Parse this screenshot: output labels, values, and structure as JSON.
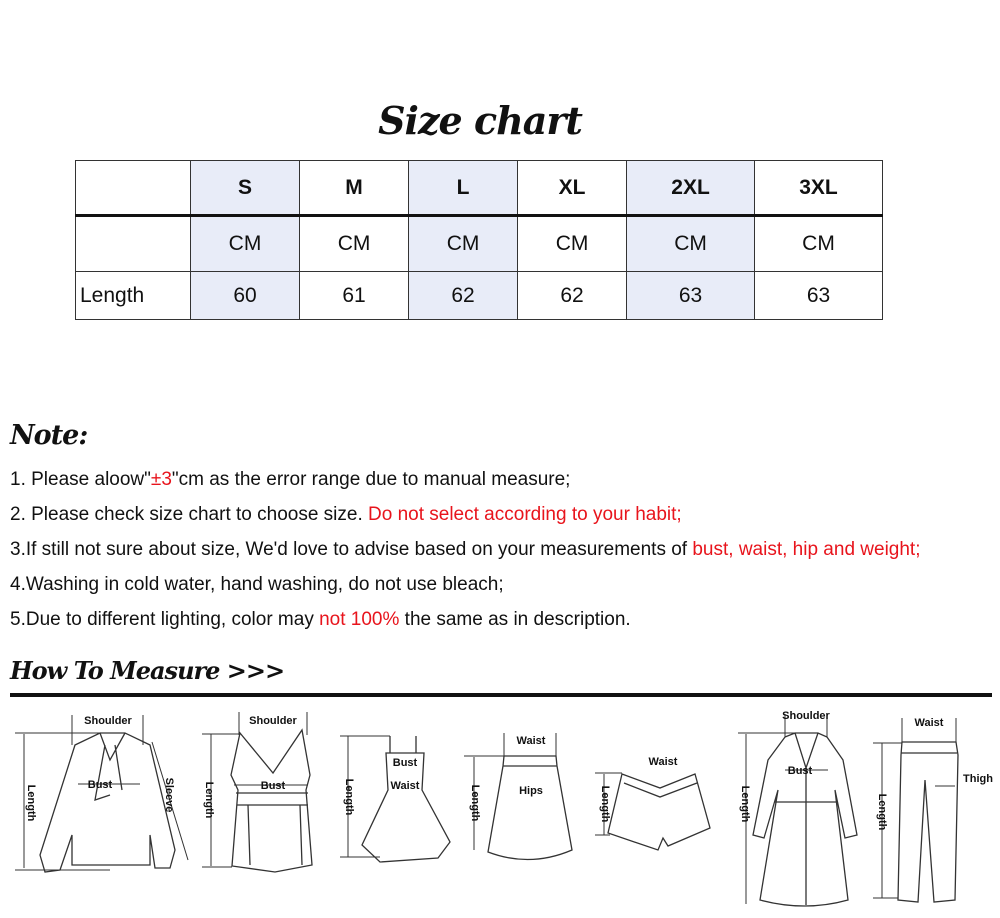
{
  "title": "Size chart",
  "table": {
    "sizes": [
      "S",
      "M",
      "L",
      "XL",
      "2XL",
      "3XL"
    ],
    "unit_row": {
      "label": "",
      "values": [
        "CM",
        "CM",
        "CM",
        "CM",
        "CM",
        "CM"
      ]
    },
    "rows": [
      {
        "label": "Length",
        "values": [
          "60",
          "61",
          "62",
          "62",
          "63",
          "63"
        ]
      }
    ],
    "shade_color": "#e8ecf8"
  },
  "note": {
    "heading": "Note:",
    "highlight_color": "#e8141c",
    "lines": [
      {
        "a": "1. Please aloow\"",
        "r": "±3",
        "b": "\"cm as the error range due to manual measure;"
      },
      {
        "a": "2. Please check size chart to choose size. ",
        "r": "Do not select according to your habit;",
        "b": ""
      },
      {
        "a": "3.If still not sure about size, We'd love to advise based on your measurements of ",
        "r": "bust, waist, hip and weight;",
        "b": ""
      },
      {
        "a": "4.Washing in cold water, hand washing, do not use bleach;",
        "r": "",
        "b": ""
      },
      {
        "a": "5.Due to different lighting, color may ",
        "r": "not 100%",
        "b": " the same as in description."
      }
    ]
  },
  "measure": {
    "heading": "How To Measure >>>",
    "garments": [
      {
        "name": "blouse",
        "labels": {
          "shoulder": "Shoulder",
          "bust": "Bust",
          "sleeve": "Sleeve",
          "length": "Length"
        }
      },
      {
        "name": "tank-top",
        "labels": {
          "shoulder": "Shoulder",
          "bust": "Bust",
          "length": "Length"
        }
      },
      {
        "name": "dress",
        "labels": {
          "bust": "Bust",
          "waist": "Waist",
          "length": "Length"
        }
      },
      {
        "name": "skirt",
        "labels": {
          "waist": "Waist",
          "hips": "Hips",
          "length": "Length"
        }
      },
      {
        "name": "shorts",
        "labels": {
          "waist": "Waist",
          "length": "Length"
        }
      },
      {
        "name": "coat",
        "labels": {
          "shoulder": "Shoulder",
          "bust": "Bust",
          "length": "Length"
        }
      },
      {
        "name": "pants",
        "labels": {
          "waist": "Waist",
          "thigh": "Thigh",
          "length": "Length"
        }
      }
    ]
  }
}
